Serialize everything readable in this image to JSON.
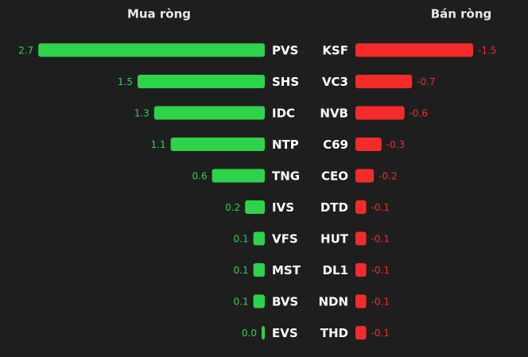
{
  "chart_data": [
    {
      "type": "bar",
      "orientation": "horizontal",
      "title": "Mua ròng",
      "categories": [
        "PVS",
        "SHS",
        "IDC",
        "NTP",
        "TNG",
        "IVS",
        "VFS",
        "MST",
        "BVS",
        "EVS"
      ],
      "values": [
        2.7,
        1.5,
        1.3,
        1.1,
        0.6,
        0.2,
        0.1,
        0.1,
        0.1,
        0.0
      ],
      "value_labels": [
        "2.7",
        "1.5",
        "1.3",
        "1.1",
        "0.6",
        "0.2",
        "0.1",
        "0.1",
        "0.1",
        "0.0"
      ],
      "color": "#2fd24b"
    },
    {
      "type": "bar",
      "orientation": "horizontal",
      "title": "Bán ròng",
      "categories": [
        "KSF",
        "VC3",
        "NVB",
        "C69",
        "CEO",
        "DTD",
        "HUT",
        "DL1",
        "NDN",
        "THD"
      ],
      "values": [
        -1.5,
        -0.7,
        -0.6,
        -0.3,
        -0.2,
        -0.1,
        -0.1,
        -0.1,
        -0.1,
        -0.1
      ],
      "color": "#f42b2b"
    }
  ]
}
